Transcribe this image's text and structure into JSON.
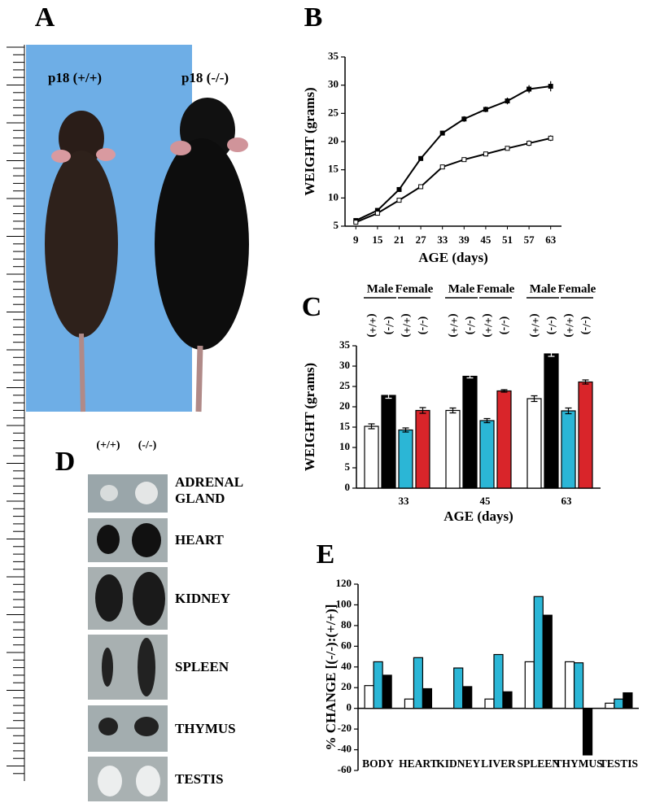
{
  "figure": {
    "panel_labels": [
      "A",
      "B",
      "C",
      "D",
      "E"
    ]
  },
  "mouse_photo": {
    "labels": [
      "p18 (+/+)",
      "p18 (-/-)"
    ]
  },
  "organ_photo": {
    "columns": [
      "(+/+)",
      "(-/-)"
    ],
    "organs": [
      "ADRENAL GLAND",
      "HEART",
      "KIDNEY",
      "SPLEEN",
      "THYMUS",
      "TESTIS"
    ]
  },
  "chart_data": [
    {
      "type": "line",
      "x_label": "AGE (days)",
      "y_label": "WEIGHT (grams)",
      "x": [
        9,
        15,
        21,
        27,
        33,
        39,
        45,
        51,
        57,
        63
      ],
      "xlim": [
        6,
        66
      ],
      "xticks": [
        9,
        15,
        21,
        27,
        33,
        39,
        45,
        51,
        57,
        63
      ],
      "ylim": [
        5,
        35
      ],
      "yticks": [
        5,
        10,
        15,
        20,
        25,
        30,
        35
      ],
      "series": [
        {
          "color": "#000000",
          "values": [
            6,
            7.8,
            11.5,
            17,
            21.5,
            24,
            25.7,
            27.2,
            29.3,
            29.8
          ],
          "errors": [
            0.2,
            0.3,
            0.3,
            0.4,
            0.4,
            0.5,
            0.5,
            0.6,
            0.7,
            0.9
          ]
        },
        {
          "color": "#ffffff",
          "values": [
            5.7,
            7.3,
            9.6,
            12,
            15.5,
            16.8,
            17.8,
            18.8,
            19.7,
            20.6
          ],
          "errors": [
            0.2,
            0.3,
            0.3,
            0.3,
            0.3,
            0.4,
            0.4,
            0.4,
            0.5,
            0.5
          ]
        }
      ]
    },
    {
      "type": "bar",
      "x_label": "AGE (days)",
      "y_label": "WEIGHT (grams)",
      "sex_labels": [
        "Male",
        "Female"
      ],
      "genotype_labels": [
        "(+/+)",
        "(-/-)",
        "(+/+)",
        "(-/-)"
      ],
      "categories": [
        "33",
        "45",
        "63"
      ],
      "ylim": [
        0,
        35
      ],
      "yticks": [
        0,
        5,
        10,
        15,
        20,
        25,
        30,
        35
      ],
      "series": [
        {
          "color": "#ffffff",
          "values": [
            15.2,
            19.1,
            22
          ],
          "errors": [
            0.6,
            0.6,
            0.7
          ]
        },
        {
          "color": "#000000",
          "values": [
            22.8,
            27.5,
            33
          ],
          "errors": [
            0.7,
            0.4,
            0.6
          ]
        },
        {
          "color": "#2bb6d6",
          "values": [
            14.3,
            16.6,
            19
          ],
          "errors": [
            0.5,
            0.5,
            0.7
          ]
        },
        {
          "color": "#d9252a",
          "values": [
            19.1,
            23.9,
            26.1
          ],
          "errors": [
            0.7,
            0.3,
            0.5
          ]
        }
      ]
    },
    {
      "type": "bar",
      "y_label": "% CHANGE [(-/-):(+/+)]",
      "categories": [
        "BODY",
        "HEART",
        "KIDNEY",
        "LIVER",
        "SPLEEN",
        "THYMUS",
        "TESTIS"
      ],
      "ylim": [
        -60,
        120
      ],
      "yticks": [
        -60,
        -40,
        -20,
        0,
        20,
        40,
        60,
        80,
        100,
        120
      ],
      "series": [
        {
          "color": "#ffffff",
          "values": [
            22,
            9,
            0,
            9,
            45,
            45,
            5
          ]
        },
        {
          "color": "#2bb6d6",
          "values": [
            45,
            49,
            39,
            52,
            108,
            44,
            9
          ]
        },
        {
          "color": "#000000",
          "values": [
            32,
            19,
            21,
            16,
            90,
            -45,
            15
          ]
        }
      ]
    }
  ]
}
